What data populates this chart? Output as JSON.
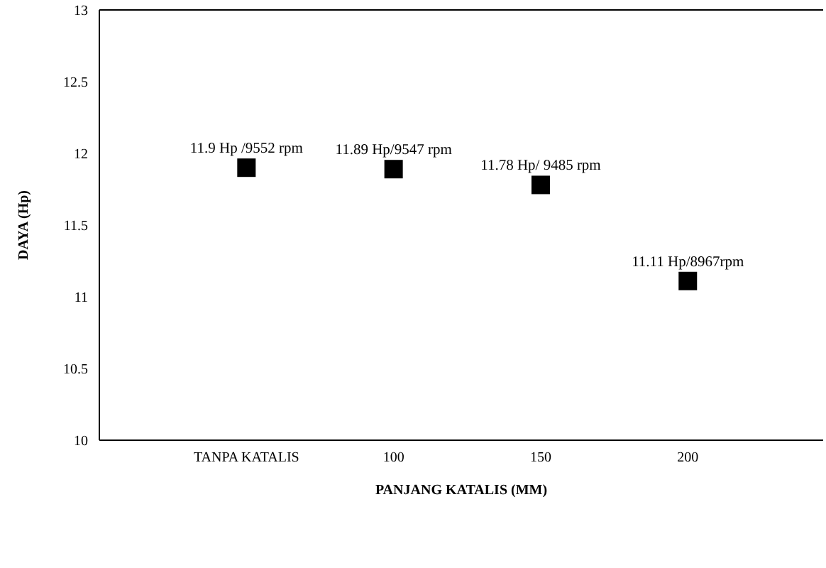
{
  "chart_data": {
    "type": "scatter",
    "xlabel": "PANJANG KATALIS  (MM)",
    "ylabel": "DAYA (Hp)",
    "categories": [
      "TANPA KATALIS",
      "100",
      "150",
      "200"
    ],
    "values": [
      11.9,
      11.89,
      11.78,
      11.11
    ],
    "value_labels": [
      "11.9 Hp /9552 rpm",
      "11.89 Hp/9547 rpm",
      "11.78 Hp/ 9485 rpm",
      "11.11 Hp/8967rpm"
    ],
    "color": "#000000",
    "marker": "square",
    "ylim": [
      10,
      13
    ],
    "yticks": [
      10,
      10.5,
      11,
      11.5,
      12,
      12.5,
      13
    ],
    "grid": false
  }
}
